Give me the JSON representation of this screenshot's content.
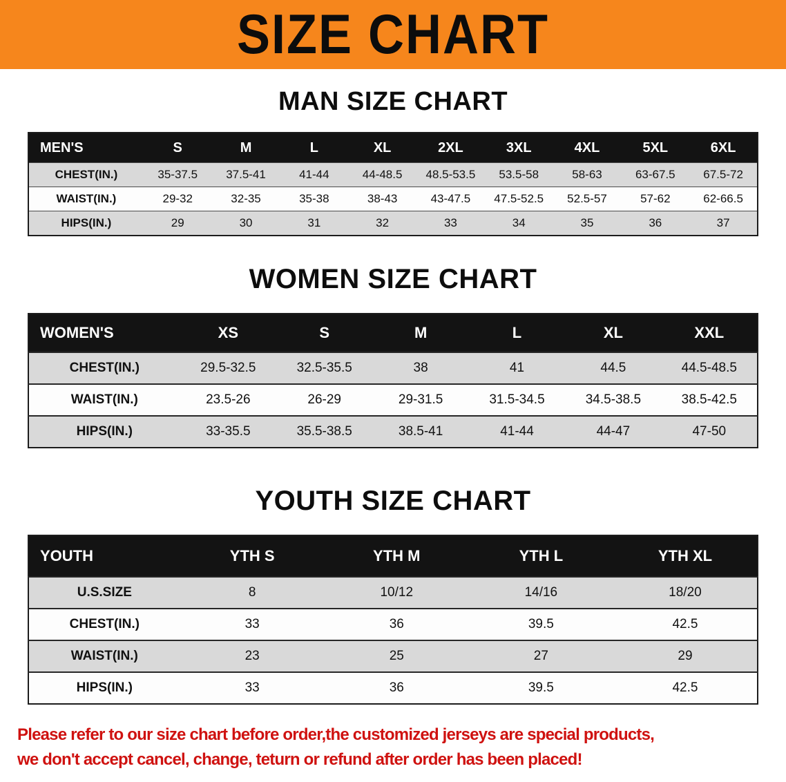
{
  "banner": {
    "title": "SIZE CHART"
  },
  "headings": {
    "men": "MAN SIZE CHART",
    "women": "WOMEN SIZE CHART",
    "youth": "YOUTH SIZE CHART"
  },
  "tables": {
    "men": {
      "label": "MEN'S",
      "columns": [
        "S",
        "M",
        "L",
        "XL",
        "2XL",
        "3XL",
        "4XL",
        "5XL",
        "6XL"
      ],
      "rows": [
        {
          "label": "CHEST(IN.)",
          "values": [
            "35-37.5",
            "37.5-41",
            "41-44",
            "44-48.5",
            "48.5-53.5",
            "53.5-58",
            "58-63",
            "63-67.5",
            "67.5-72"
          ]
        },
        {
          "label": "WAIST(IN.)",
          "values": [
            "29-32",
            "32-35",
            "35-38",
            "38-43",
            "43-47.5",
            "47.5-52.5",
            "52.5-57",
            "57-62",
            "62-66.5"
          ]
        },
        {
          "label": "HIPS(IN.)",
          "values": [
            "29",
            "30",
            "31",
            "32",
            "33",
            "34",
            "35",
            "36",
            "37"
          ]
        }
      ]
    },
    "women": {
      "label": "WOMEN'S",
      "columns": [
        "XS",
        "S",
        "M",
        "L",
        "XL",
        "XXL"
      ],
      "rows": [
        {
          "label": "CHEST(IN.)",
          "values": [
            "29.5-32.5",
            "32.5-35.5",
            "38",
            "41",
            "44.5",
            "44.5-48.5"
          ]
        },
        {
          "label": "WAIST(IN.)",
          "values": [
            "23.5-26",
            "26-29",
            "29-31.5",
            "31.5-34.5",
            "34.5-38.5",
            "38.5-42.5"
          ]
        },
        {
          "label": "HIPS(IN.)",
          "values": [
            "33-35.5",
            "35.5-38.5",
            "38.5-41",
            "41-44",
            "44-47",
            "47-50"
          ]
        }
      ]
    },
    "youth": {
      "label": "YOUTH",
      "columns": [
        "YTH S",
        "YTH M",
        "YTH L",
        "YTH XL"
      ],
      "rows": [
        {
          "label": "U.S.SIZE",
          "values": [
            "8",
            "10/12",
            "14/16",
            "18/20"
          ]
        },
        {
          "label": "CHEST(IN.)",
          "values": [
            "33",
            "36",
            "39.5",
            "42.5"
          ]
        },
        {
          "label": "WAIST(IN.)",
          "values": [
            "23",
            "25",
            "27",
            "29"
          ]
        },
        {
          "label": "HIPS(IN.)",
          "values": [
            "33",
            "36",
            "39.5",
            "42.5"
          ]
        }
      ]
    }
  },
  "footer": {
    "line1": "Please refer to our size chart before order,the customized jerseys are special products,",
    "line2": "we don't accept cancel, change, teturn or refund after order has been placed!"
  },
  "colors": {
    "banner_orange": "#f6861c",
    "notice_red": "#cf1210"
  }
}
